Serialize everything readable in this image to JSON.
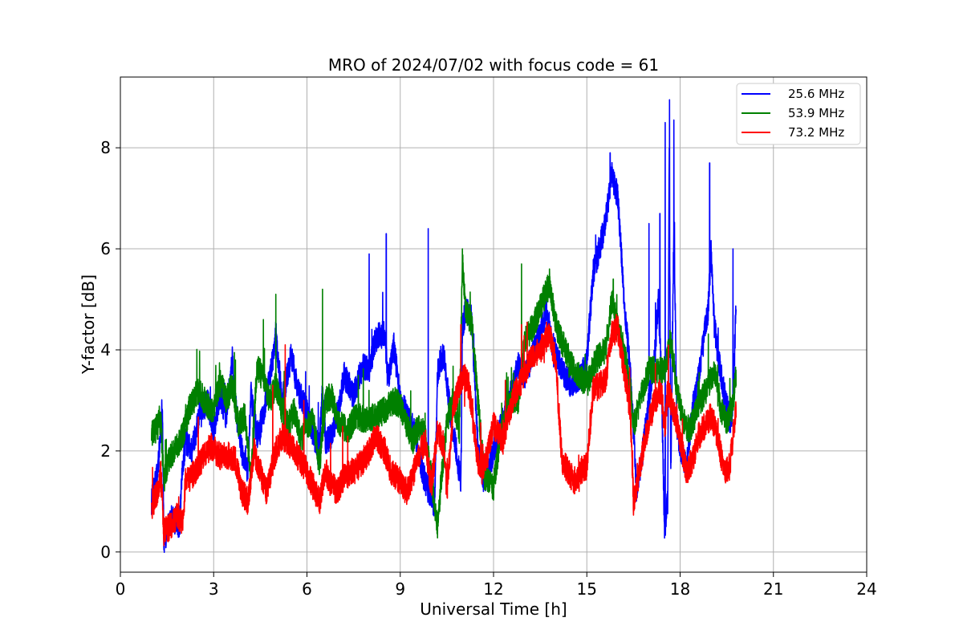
{
  "chart_data": {
    "type": "line",
    "title": "MRO of 2024/07/02 with focus code = 61",
    "xlabel": "Universal Time [h]",
    "ylabel": "Y-factor [dB]",
    "xlim": [
      0,
      24
    ],
    "ylim": [
      -0.4,
      9.4
    ],
    "xticks": [
      0,
      3,
      6,
      9,
      12,
      15,
      18,
      21,
      24
    ],
    "xtick_labels": [
      "0",
      "3",
      "6",
      "9",
      "12",
      "15",
      "18",
      "21",
      "24"
    ],
    "yticks": [
      0,
      2,
      4,
      6,
      8
    ],
    "ytick_labels": [
      "0",
      "2",
      "4",
      "6",
      "8"
    ],
    "grid": true,
    "legend_position": "top-right",
    "series": [
      {
        "name": "25.6 MHz",
        "color": "#0000ff",
        "x": [
          1.0,
          1.2,
          1.3,
          1.35,
          1.4,
          1.5,
          1.7,
          1.9,
          2.0,
          2.1,
          2.3,
          2.5,
          2.8,
          3.0,
          3.2,
          3.4,
          3.6,
          3.7,
          3.9,
          4.1,
          4.2,
          4.4,
          4.6,
          4.9,
          5.0,
          5.2,
          5.5,
          5.7,
          6.0,
          6.2,
          6.4,
          6.5,
          6.6,
          6.8,
          7.0,
          7.2,
          7.5,
          7.8,
          8.0,
          8.2,
          8.3,
          8.5,
          8.6,
          8.8,
          9.0,
          9.3,
          9.5,
          9.7,
          9.9,
          10.1,
          10.2,
          10.3,
          10.4,
          10.6,
          10.8,
          10.95,
          11.0,
          11.1,
          11.3,
          11.5,
          11.7,
          12.0,
          12.2,
          12.5,
          12.8,
          13.0,
          13.2,
          13.5,
          13.7,
          13.9,
          14.2,
          14.5,
          14.8,
          15.0,
          15.2,
          15.4,
          15.6,
          15.8,
          16.0,
          16.2,
          16.4,
          16.5,
          16.6,
          16.8,
          17.0,
          17.2,
          17.3,
          17.4,
          17.5,
          17.6,
          17.65,
          17.7,
          17.8,
          17.9,
          18.0,
          18.2,
          18.4,
          18.6,
          18.8,
          18.9,
          19.0,
          19.1,
          19.2,
          19.4,
          19.6,
          19.7,
          19.8
        ],
        "y": [
          1.0,
          1.6,
          2.4,
          3.0,
          0.1,
          0.5,
          0.7,
          0.4,
          1.7,
          2.2,
          2.0,
          2.6,
          3.0,
          2.4,
          3.1,
          2.7,
          3.8,
          2.9,
          2.0,
          1.6,
          3.1,
          2.3,
          2.7,
          3.8,
          4.3,
          3.0,
          3.9,
          3.2,
          2.8,
          2.3,
          2.1,
          3.2,
          2.2,
          2.3,
          2.8,
          3.5,
          3.1,
          3.7,
          3.6,
          4.2,
          4.3,
          4.3,
          3.4,
          4.1,
          3.0,
          2.6,
          2.3,
          1.6,
          1.2,
          0.9,
          3.5,
          3.8,
          3.9,
          2.8,
          2.0,
          1.4,
          4.4,
          4.8,
          4.6,
          2.0,
          1.4,
          2.0,
          2.4,
          3.0,
          3.7,
          3.5,
          3.8,
          4.3,
          4.8,
          4.1,
          3.6,
          3.3,
          3.5,
          3.8,
          5.5,
          6.0,
          6.5,
          7.5,
          7.0,
          5.0,
          3.5,
          2.4,
          1.2,
          2.0,
          3.0,
          4.0,
          5.0,
          3.4,
          0.4,
          1.0,
          8.0,
          1.5,
          6.5,
          2.5,
          2.1,
          1.7,
          2.8,
          3.5,
          4.4,
          4.8,
          6.0,
          4.5,
          4.0,
          3.2,
          2.6,
          2.8,
          5.0
        ],
        "peaks": [
          [
            8.0,
            5.9
          ],
          [
            8.55,
            6.3
          ],
          [
            9.9,
            6.4
          ],
          [
            15.75,
            7.9
          ],
          [
            17.0,
            6.5
          ],
          [
            17.35,
            6.7
          ],
          [
            17.52,
            8.5
          ],
          [
            17.66,
            8.95
          ],
          [
            17.8,
            8.55
          ],
          [
            18.95,
            7.7
          ],
          [
            19.7,
            6.0
          ]
        ]
      },
      {
        "name": "53.9 MHz",
        "color": "#008000",
        "x": [
          1.0,
          1.2,
          1.3,
          1.4,
          1.6,
          1.8,
          2.0,
          2.2,
          2.5,
          2.8,
          3.0,
          3.2,
          3.4,
          3.6,
          3.8,
          4.0,
          4.2,
          4.4,
          4.6,
          4.8,
          5.0,
          5.2,
          5.4,
          5.6,
          5.8,
          6.0,
          6.2,
          6.4,
          6.6,
          6.8,
          7.0,
          7.3,
          7.6,
          7.9,
          8.2,
          8.5,
          8.8,
          9.0,
          9.2,
          9.4,
          9.6,
          9.8,
          10.0,
          10.2,
          10.3,
          10.5,
          10.7,
          10.9,
          11.0,
          11.1,
          11.3,
          11.5,
          11.7,
          12.0,
          12.2,
          12.5,
          12.8,
          13.0,
          13.3,
          13.6,
          13.8,
          14.0,
          14.3,
          14.6,
          15.0,
          15.3,
          15.6,
          15.8,
          16.0,
          16.2,
          16.4,
          16.5,
          16.7,
          17.0,
          17.3,
          17.5,
          17.7,
          17.9,
          18.1,
          18.3,
          18.6,
          18.9,
          19.1,
          19.3,
          19.5,
          19.7,
          19.8
        ],
        "y": [
          2.3,
          2.5,
          2.6,
          1.4,
          1.9,
          2.1,
          2.3,
          2.8,
          3.2,
          2.9,
          2.8,
          3.4,
          3.0,
          3.3,
          2.5,
          2.7,
          1.5,
          3.7,
          3.4,
          3.0,
          3.3,
          2.8,
          2.5,
          2.8,
          2.2,
          2.5,
          2.6,
          1.7,
          3.0,
          3.1,
          2.6,
          2.4,
          2.7,
          2.6,
          2.7,
          2.8,
          3.0,
          2.9,
          2.5,
          2.2,
          2.5,
          2.3,
          1.5,
          0.5,
          1.3,
          2.6,
          3.0,
          2.4,
          5.8,
          4.8,
          4.5,
          3.0,
          1.5,
          1.3,
          2.2,
          2.9,
          3.0,
          4.2,
          4.5,
          5.0,
          5.3,
          4.5,
          4.0,
          3.6,
          3.3,
          3.8,
          4.0,
          5.0,
          4.4,
          4.0,
          3.2,
          2.5,
          3.0,
          3.6,
          3.6,
          3.6,
          4.2,
          3.2,
          2.6,
          2.4,
          2.9,
          3.3,
          3.6,
          2.8,
          2.6,
          2.9,
          3.5
        ],
        "peaks": [
          [
            3.7,
            3.8
          ],
          [
            4.6,
            4.6
          ],
          [
            5.0,
            5.1
          ],
          [
            6.5,
            5.2
          ],
          [
            11.0,
            6.0
          ],
          [
            12.9,
            5.7
          ],
          [
            13.8,
            5.6
          ],
          [
            15.85,
            5.4
          ]
        ]
      },
      {
        "name": "73.2 MHz",
        "color": "#ff0000",
        "x": [
          1.0,
          1.2,
          1.3,
          1.4,
          1.6,
          1.8,
          2.0,
          2.1,
          2.3,
          2.6,
          2.9,
          3.2,
          3.5,
          3.7,
          3.9,
          4.1,
          4.3,
          4.5,
          4.7,
          5.0,
          5.2,
          5.5,
          5.8,
          6.0,
          6.2,
          6.4,
          6.6,
          6.8,
          7.0,
          7.2,
          7.5,
          7.8,
          8.0,
          8.2,
          8.5,
          8.7,
          9.0,
          9.2,
          9.4,
          9.6,
          9.8,
          10.0,
          10.2,
          10.4,
          10.5,
          10.7,
          10.9,
          11.0,
          11.2,
          11.5,
          11.7,
          12.0,
          12.3,
          12.6,
          12.9,
          13.2,
          13.5,
          13.8,
          14.0,
          14.2,
          14.4,
          14.6,
          14.8,
          15.0,
          15.2,
          15.4,
          15.6,
          15.8,
          16.0,
          16.2,
          16.4,
          16.5,
          16.6,
          16.8,
          17.0,
          17.2,
          17.4,
          17.5,
          17.6,
          17.8,
          18.0,
          18.2,
          18.4,
          18.6,
          18.8,
          19.0,
          19.2,
          19.4,
          19.6,
          19.8
        ],
        "y": [
          0.9,
          1.2,
          1.6,
          0.4,
          0.5,
          0.7,
          0.6,
          1.4,
          1.5,
          1.8,
          2.1,
          1.9,
          1.9,
          1.8,
          1.2,
          1.0,
          2.0,
          1.6,
          1.2,
          2.0,
          2.3,
          2.1,
          1.8,
          1.6,
          1.3,
          1.0,
          1.6,
          1.3,
          1.2,
          1.5,
          1.6,
          1.8,
          2.0,
          2.3,
          2.0,
          1.6,
          1.4,
          1.2,
          1.5,
          1.9,
          2.2,
          1.3,
          2.4,
          2.1,
          1.2,
          2.8,
          3.3,
          3.5,
          3.3,
          1.8,
          1.7,
          2.5,
          2.2,
          3.0,
          3.4,
          3.8,
          4.0,
          4.3,
          3.8,
          1.8,
          1.6,
          1.4,
          1.6,
          1.7,
          3.2,
          3.3,
          3.4,
          4.3,
          4.4,
          3.6,
          2.8,
          1.0,
          1.3,
          2.0,
          2.6,
          3.0,
          3.2,
          2.4,
          3.2,
          2.8,
          2.2,
          1.6,
          1.8,
          2.3,
          2.5,
          2.7,
          2.3,
          1.6,
          1.7,
          2.9
        ],
        "peaks": [
          [
            4.9,
            3.3
          ],
          [
            5.3,
            4.1
          ],
          [
            5.9,
            3.0
          ],
          [
            10.95,
            4.5
          ],
          [
            12.9,
            4.5
          ],
          [
            15.95,
            4.7
          ]
        ]
      }
    ]
  }
}
